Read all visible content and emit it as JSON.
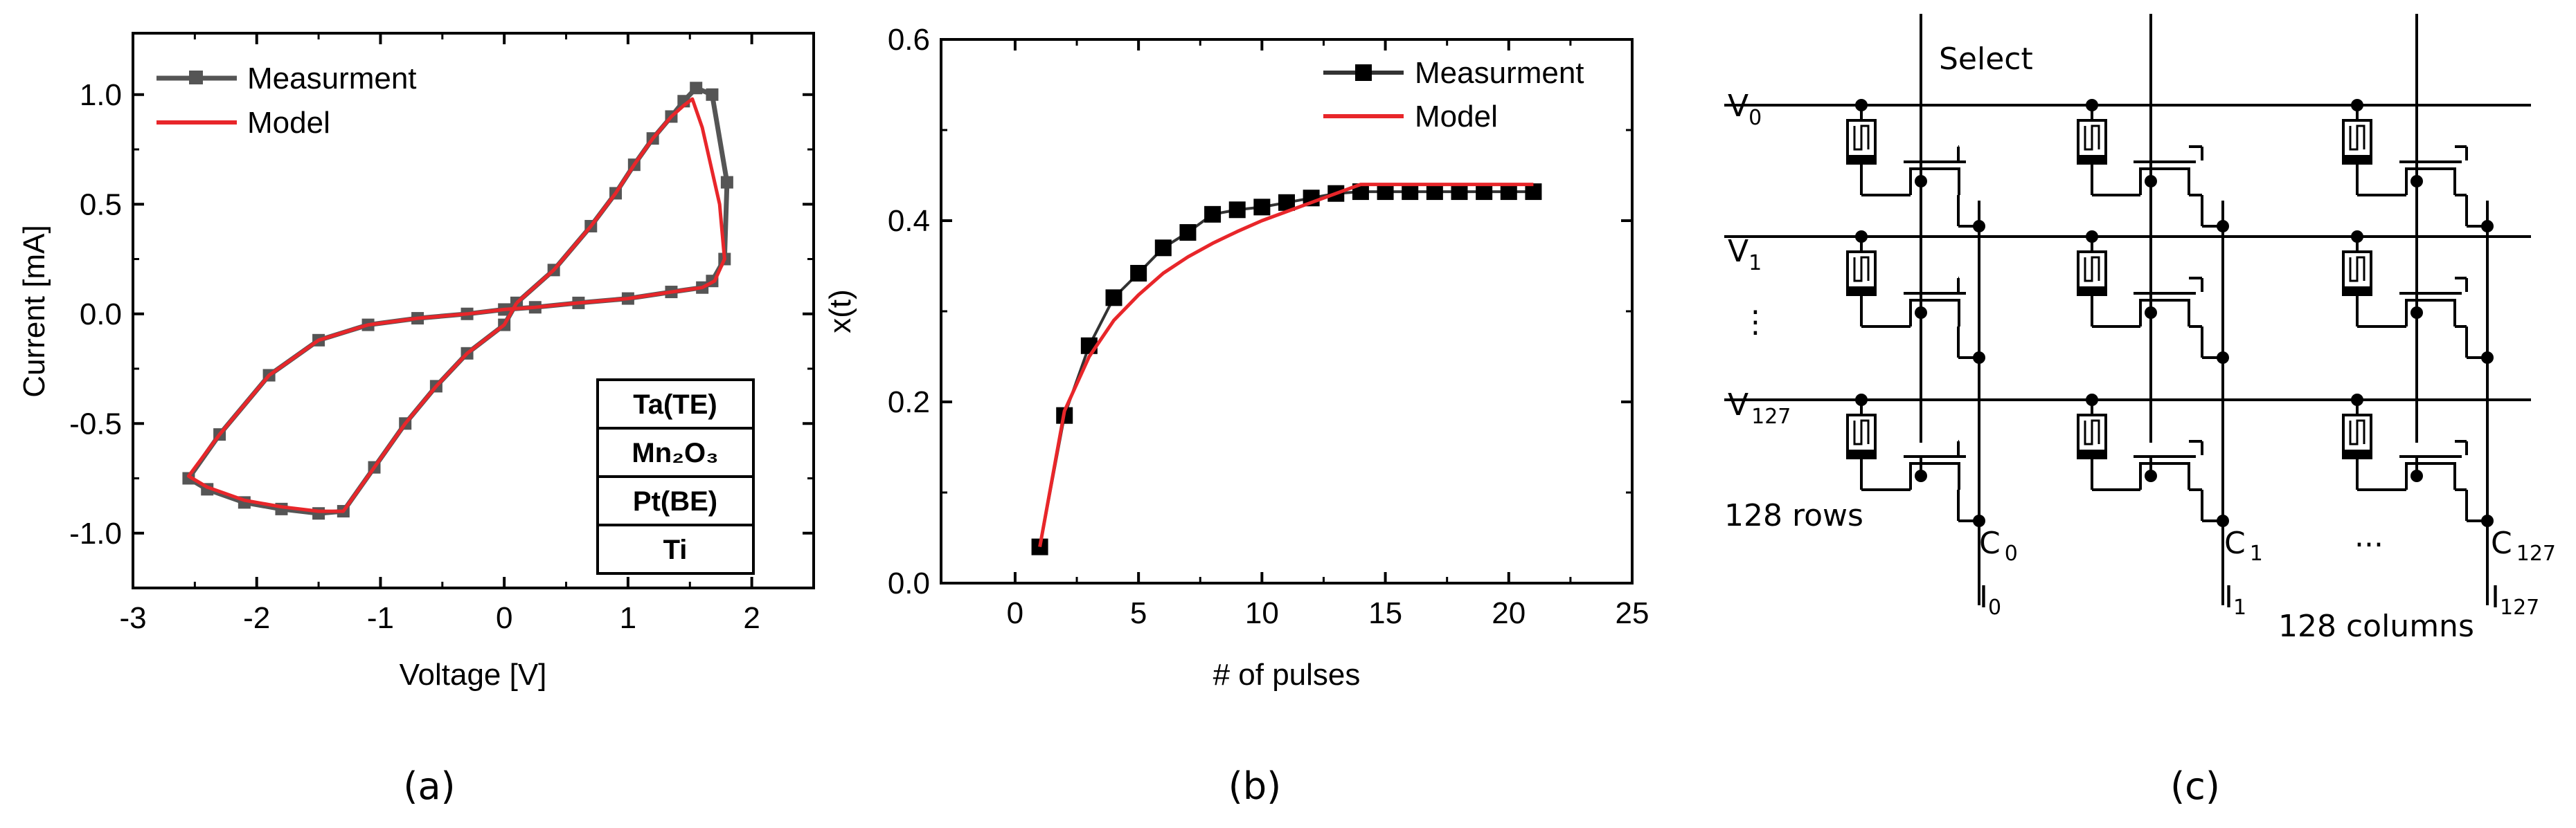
{
  "chart_data": [
    {
      "panel": "(a)",
      "type": "line",
      "xlabel": "Voltage [V]",
      "ylabel": "Current [mA]",
      "xlim": [
        -3,
        2.5
      ],
      "ylim": [
        -1.25,
        1.28
      ],
      "xticks": [
        -3,
        -2,
        -1,
        0,
        1,
        2
      ],
      "xtick_labels": [
        "-3",
        "-2",
        "-1",
        "0",
        "1",
        "2"
      ],
      "yticks": [
        -1.0,
        -0.5,
        0.0,
        0.5,
        1.0
      ],
      "ytick_labels": [
        "-1.0",
        "-0.5",
        "0.0",
        "0.5",
        "1.0"
      ],
      "legend_position": "top-left",
      "series": [
        {
          "name": "Measurment",
          "color": "#555555",
          "marker": "square",
          "x": [
            0.1,
            0.4,
            0.7,
            0.9,
            1.05,
            1.2,
            1.35,
            1.45,
            1.55,
            1.68,
            1.8,
            1.78,
            1.68,
            1.6,
            1.35,
            1.0,
            0.6,
            0.25,
            0.0,
            -0.3,
            -0.7,
            -1.1,
            -1.5,
            -1.9,
            -2.3,
            -2.55,
            -2.4,
            -2.1,
            -1.8,
            -1.5,
            -1.3,
            -1.05,
            -0.8,
            -0.55,
            -0.3,
            0.0,
            0.1
          ],
          "y": [
            0.05,
            0.2,
            0.4,
            0.55,
            0.68,
            0.8,
            0.9,
            0.97,
            1.03,
            1.0,
            0.6,
            0.25,
            0.15,
            0.12,
            0.1,
            0.07,
            0.05,
            0.03,
            0.02,
            0.0,
            -0.02,
            -0.05,
            -0.12,
            -0.28,
            -0.55,
            -0.75,
            -0.8,
            -0.86,
            -0.89,
            -0.91,
            -0.9,
            -0.7,
            -0.5,
            -0.33,
            -0.18,
            -0.05,
            0.05
          ]
        },
        {
          "name": "Model",
          "color": "#e8262a",
          "x": [
            0.1,
            0.4,
            0.7,
            0.9,
            1.05,
            1.2,
            1.35,
            1.45,
            1.52,
            1.6,
            1.74,
            1.78,
            1.7,
            1.6,
            1.35,
            1.0,
            0.6,
            0.25,
            0.0,
            -0.3,
            -0.7,
            -1.1,
            -1.5,
            -1.9,
            -2.3,
            -2.55,
            -2.4,
            -2.1,
            -1.8,
            -1.5,
            -1.3,
            -1.05,
            -0.8,
            -0.55,
            -0.3,
            0.0,
            0.1
          ],
          "y": [
            0.05,
            0.2,
            0.4,
            0.55,
            0.68,
            0.8,
            0.9,
            0.95,
            0.98,
            0.85,
            0.5,
            0.25,
            0.15,
            0.12,
            0.1,
            0.07,
            0.05,
            0.03,
            0.02,
            0.0,
            -0.02,
            -0.05,
            -0.12,
            -0.28,
            -0.55,
            -0.74,
            -0.79,
            -0.85,
            -0.88,
            -0.9,
            -0.9,
            -0.7,
            -0.5,
            -0.33,
            -0.18,
            -0.05,
            0.05
          ]
        }
      ],
      "annotations": [
        "Ta(TE)",
        "Mn₂O₃",
        "Pt(BE)",
        "Ti"
      ]
    },
    {
      "panel": "(b)",
      "type": "line",
      "xlabel": "# of pulses",
      "ylabel": "x(t)",
      "xlim": [
        -3,
        25
      ],
      "ylim": [
        0,
        0.6
      ],
      "xticks": [
        0,
        5,
        10,
        15,
        20,
        25
      ],
      "xtick_labels": [
        "0",
        "5",
        "10",
        "15",
        "20",
        "25"
      ],
      "yticks": [
        0.0,
        0.2,
        0.4,
        0.6
      ],
      "ytick_labels": [
        "0.0",
        "0.2",
        "0.4",
        "0.6"
      ],
      "legend_position": "top-right",
      "series": [
        {
          "name": "Measurment",
          "color": "#333333",
          "marker": "square",
          "x": [
            1,
            2,
            3,
            4,
            5,
            6,
            7,
            8,
            9,
            10,
            11,
            12,
            13,
            14,
            15,
            16,
            17,
            18,
            19,
            20,
            21
          ],
          "y": [
            0.04,
            0.185,
            0.262,
            0.315,
            0.342,
            0.37,
            0.387,
            0.407,
            0.412,
            0.415,
            0.42,
            0.425,
            0.43,
            0.432,
            0.432,
            0.432,
            0.432,
            0.432,
            0.432,
            0.432,
            0.432
          ]
        },
        {
          "name": "Model",
          "color": "#e8262a",
          "x": [
            1,
            2,
            3,
            4,
            5,
            6,
            7,
            8,
            9,
            10,
            11,
            12,
            13,
            14,
            15,
            16,
            17,
            18,
            19,
            20,
            21
          ],
          "y": [
            0.04,
            0.19,
            0.25,
            0.29,
            0.318,
            0.342,
            0.36,
            0.375,
            0.388,
            0.4,
            0.41,
            0.42,
            0.43,
            0.44,
            0.44,
            0.44,
            0.44,
            0.44,
            0.44,
            0.44,
            0.44
          ]
        }
      ]
    }
  ],
  "captions": {
    "a": "(a)",
    "b": "(b)",
    "c": "(c)"
  },
  "circuit": {
    "select": "Select",
    "rows": [
      "V",
      "V",
      "V"
    ],
    "row_subs": [
      "0",
      "1",
      "127"
    ],
    "row_ellipsis": "⋮",
    "rows_label": "128 rows",
    "cols_c": [
      "C",
      "C",
      "C"
    ],
    "cols_c_subs": [
      "0",
      "1",
      "127"
    ],
    "cols_i": [
      "I",
      "I",
      "I"
    ],
    "cols_i_subs": [
      "0",
      "1",
      "127"
    ],
    "col_ellipsis": "...",
    "columns_label": "128 columns"
  }
}
